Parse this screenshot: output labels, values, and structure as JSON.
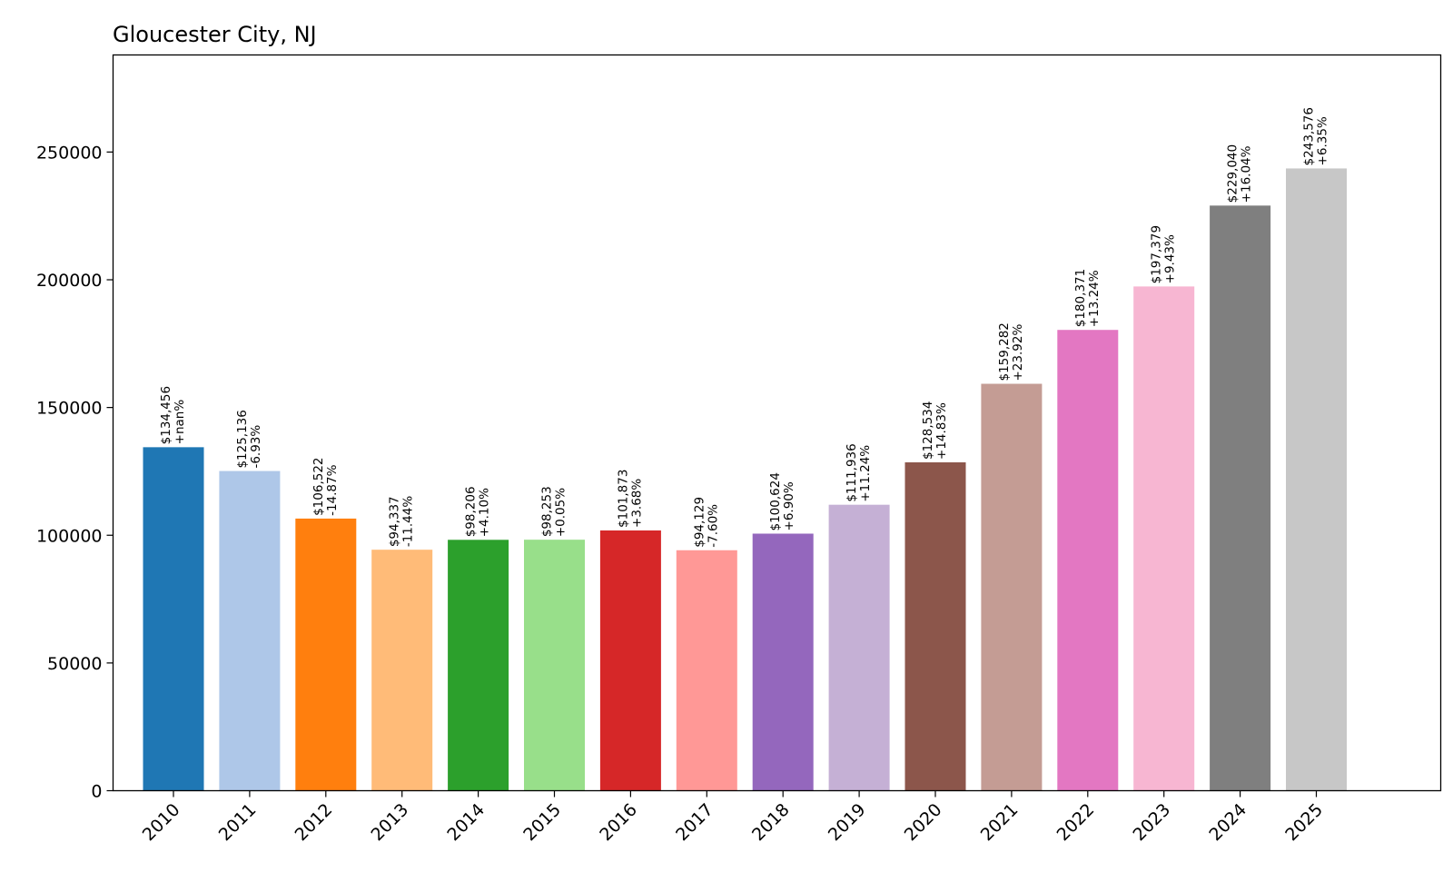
{
  "chart_data": {
    "type": "bar",
    "title": "Gloucester City, NJ",
    "xlabel": "",
    "ylabel": "",
    "categories": [
      "2010",
      "2011",
      "2012",
      "2013",
      "2014",
      "2015",
      "2016",
      "2017",
      "2018",
      "2019",
      "2020",
      "2021",
      "2022",
      "2023",
      "2024",
      "2025"
    ],
    "values": [
      134456,
      125136,
      106522,
      94337,
      98206,
      98253,
      101873,
      94129,
      100624,
      111936,
      128534,
      159282,
      180371,
      197379,
      229040,
      243576
    ],
    "value_labels": [
      "$134,456",
      "$125,136",
      "$106,522",
      "$94,337",
      "$98,206",
      "$98,253",
      "$101,873",
      "$94,129",
      "$100,624",
      "$111,936",
      "$128,534",
      "$159,282",
      "$180,371",
      "$197,379",
      "$229,040",
      "$243,576"
    ],
    "change_labels": [
      "+nan%",
      "-6.93%",
      "-14.87%",
      "-11.44%",
      "+4.10%",
      "+0.05%",
      "+3.68%",
      "-7.60%",
      "+6.90%",
      "+11.24%",
      "+14.83%",
      "+23.92%",
      "+13.24%",
      "+9.43%",
      "+16.04%",
      "+6.35%"
    ],
    "colors": [
      "#1f77b4",
      "#aec7e8",
      "#ff7f0e",
      "#ffbb78",
      "#2ca02c",
      "#98df8a",
      "#d62728",
      "#ff9896",
      "#9467bd",
      "#c5b0d5",
      "#8c564b",
      "#c49c94",
      "#e377c2",
      "#f7b6d2",
      "#7f7f7f",
      "#c7c7c7"
    ],
    "ylim": [
      0,
      288000
    ],
    "yticks": [
      0,
      50000,
      100000,
      150000,
      200000,
      250000
    ],
    "grid": false,
    "legend": "none"
  }
}
